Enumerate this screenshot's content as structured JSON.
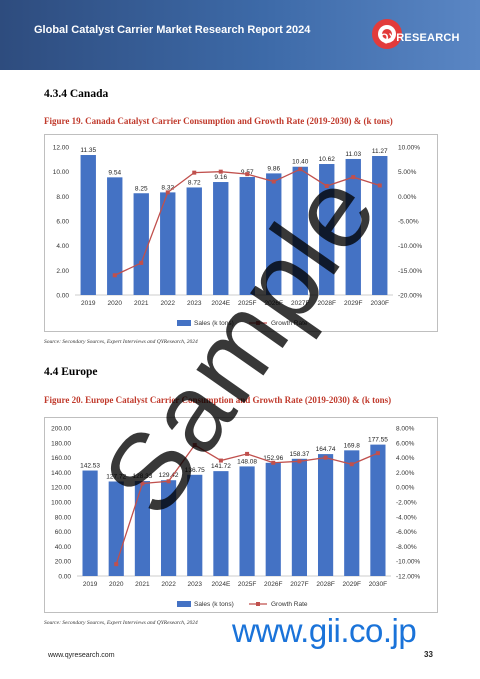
{
  "header": {
    "title": "Global Catalyst Carrier Market Research Report 2024",
    "logo_text": "QYRESEARCH",
    "accent": "#2e4c7e"
  },
  "section1": {
    "heading": "4.3.4  Canada",
    "figure_caption": "Figure 19.   Canada Catalyst Carrier Consumption and Growth Rate (2019-2030) & (k tons)",
    "source": "Source: Secondary Sources, Expert Interviews and QYResearch, 2024"
  },
  "section2": {
    "heading": "4.4  Europe",
    "figure_caption": "Figure 20.   Europe Catalyst Carrier Consumption and Growth Rate (2019-2030) & (k tons)",
    "source": "Source: Secondary Sources, Expert Interviews and QYResearch, 2024"
  },
  "chart_data": [
    {
      "type": "bar",
      "categories": [
        "2019",
        "2020",
        "2021",
        "2022",
        "2023",
        "2024E",
        "2025F",
        "2026F",
        "2027F",
        "2028F",
        "2029F",
        "2030F"
      ],
      "values": [
        11.35,
        9.54,
        8.25,
        8.32,
        8.72,
        9.16,
        9.57,
        9.86,
        10.4,
        10.62,
        11.03,
        11.27
      ],
      "value_labels": [
        "11.35",
        "9.54",
        "8.25",
        "8.32",
        "8.72",
        "9.16",
        "9.57",
        "9.86",
        "10.40",
        "10.62",
        "11.03",
        "11.27"
      ],
      "growth_rate": [
        null,
        -16.0,
        -13.5,
        0.8,
        4.8,
        5.0,
        4.5,
        3.0,
        5.5,
        2.1,
        3.9,
        2.2
      ],
      "ylim": [
        0,
        12
      ],
      "y_ticks": [
        "0.00",
        "2.00",
        "4.00",
        "6.00",
        "8.00",
        "10.00",
        "12.00"
      ],
      "y2lim": [
        -20,
        10
      ],
      "y2_ticks": [
        "-20.00%",
        "-15.00%",
        "-10.00%",
        "-5.00%",
        "0.00%",
        "5.00%",
        "10.00%"
      ],
      "legend": [
        "Sales (k tons)",
        "Growth Rate"
      ],
      "legend_position": "bottom",
      "bar_color": "#4472c4",
      "line_color": "#c0504d"
    },
    {
      "type": "bar",
      "categories": [
        "2019",
        "2020",
        "2021",
        "2022",
        "2023",
        "2024E",
        "2025F",
        "2026F",
        "2027F",
        "2028F",
        "2029F",
        "2030F"
      ],
      "values": [
        142.53,
        127.72,
        128.33,
        129.42,
        136.75,
        141.72,
        148.08,
        152.96,
        158.37,
        164.74,
        169.8,
        177.55
      ],
      "value_labels": [
        "142.53",
        "127.72",
        "128.33",
        "129.42",
        "136.75",
        "141.72",
        "148.08",
        "152.96",
        "158.37",
        "164.74",
        "169.8",
        "177.55"
      ],
      "growth_rate": [
        null,
        -10.4,
        0.5,
        0.8,
        5.7,
        3.6,
        4.5,
        3.3,
        3.5,
        4.0,
        3.1,
        4.6
      ],
      "ylim": [
        0,
        200
      ],
      "y_ticks": [
        "0.00",
        "20.00",
        "40.00",
        "60.00",
        "80.00",
        "100.00",
        "120.00",
        "140.00",
        "160.00",
        "180.00",
        "200.00"
      ],
      "y2lim": [
        -12,
        8
      ],
      "y2_ticks": [
        "-12.00%",
        "-10.00%",
        "-8.00%",
        "-6.00%",
        "-4.00%",
        "-2.00%",
        "0.00%",
        "2.00%",
        "4.00%",
        "6.00%",
        "8.00%"
      ],
      "legend": [
        "Sales (k tons)",
        "Growth Rate"
      ],
      "legend_position": "bottom",
      "bar_color": "#4472c4",
      "line_color": "#c0504d"
    }
  ],
  "footer": {
    "url": "www.qyresearch.com",
    "page": "33"
  },
  "watermark": {
    "text": "Sample",
    "url": "www.gii.co.jp"
  }
}
